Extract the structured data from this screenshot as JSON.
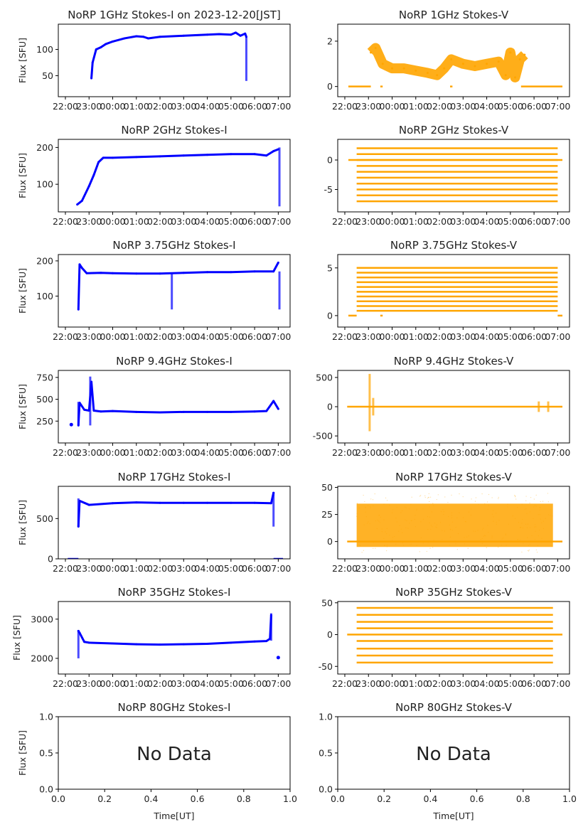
{
  "chart_data": [
    {
      "type": "scatter",
      "title": "NoRP 1GHz Stokes-I on 2023-12-20[JST]",
      "ylabel": "Flux [SFU]",
      "xlabel": "",
      "color": "#0000ff",
      "xticks": [
        "22:00",
        "23:00",
        "00:00",
        "01:00",
        "02:00",
        "03:00",
        "04:00",
        "05:00",
        "06:00",
        "07:00"
      ],
      "xlim": [
        -0.3,
        9.5
      ],
      "ylim": [
        10,
        148
      ],
      "yticks": [
        50,
        100
      ],
      "series": [
        {
          "name": "Stokes-I",
          "x": [
            1.1,
            1.15,
            1.3,
            1.5,
            1.7,
            2.0,
            2.5,
            3.0,
            3.3,
            3.5,
            4.0,
            4.5,
            5.0,
            5.5,
            6.0,
            6.5,
            7.0,
            7.2,
            7.4,
            7.6,
            7.65
          ],
          "y": [
            45,
            75,
            100,
            104,
            110,
            115,
            121,
            125,
            124,
            121,
            124,
            125,
            126,
            127,
            128,
            129,
            128,
            132,
            126,
            130,
            124
          ]
        }
      ],
      "spikes": [
        {
          "x": 7.65,
          "from": 40,
          "to": 124
        }
      ]
    },
    {
      "type": "scatter",
      "title": "NoRP 1GHz Stokes-V",
      "ylabel": "",
      "xlabel": "",
      "color": "#ffa500",
      "xticks": [
        "22:00",
        "23:00",
        "00:00",
        "01:00",
        "02:00",
        "03:00",
        "04:00",
        "05:00",
        "06:00",
        "07:00"
      ],
      "xlim": [
        -0.3,
        9.5
      ],
      "ylim": [
        -0.45,
        2.75
      ],
      "yticks": [
        0,
        2
      ],
      "series": [
        {
          "name": "Stokes-V",
          "x": [
            1.1,
            1.3,
            1.6,
            2.0,
            2.5,
            3.0,
            3.5,
            3.9,
            4.2,
            4.5,
            5.0,
            5.5,
            6.0,
            6.5,
            6.8,
            7.0,
            7.2,
            7.4,
            7.6
          ],
          "y": [
            1.5,
            1.7,
            1.0,
            0.8,
            0.8,
            0.7,
            0.6,
            0.5,
            0.8,
            1.2,
            1.0,
            0.9,
            1.0,
            1.1,
            0.5,
            1.5,
            0.4,
            1.2,
            1.4
          ]
        }
      ],
      "baseline": {
        "value": 0,
        "segments": [
          [
            0.15,
            1.1
          ],
          [
            1.5,
            1.6
          ],
          [
            4.45,
            4.55
          ],
          [
            7.45,
            9.2
          ]
        ]
      }
    },
    {
      "type": "scatter",
      "title": "NoRP 2GHz Stokes-I",
      "ylabel": "Flux [SFU]",
      "xlabel": "",
      "color": "#0000ff",
      "xticks": [
        "22:00",
        "23:00",
        "00:00",
        "01:00",
        "02:00",
        "03:00",
        "04:00",
        "05:00",
        "06:00",
        "07:00"
      ],
      "xlim": [
        -0.3,
        9.5
      ],
      "ylim": [
        25,
        222
      ],
      "yticks": [
        100,
        200
      ],
      "series": [
        {
          "name": "Stokes-I",
          "x": [
            0.5,
            0.7,
            1.0,
            1.2,
            1.4,
            1.6,
            2.0,
            3.0,
            4.0,
            5.0,
            6.0,
            7.0,
            8.0,
            8.5,
            8.8,
            9.0
          ],
          "y": [
            45,
            55,
            95,
            125,
            160,
            172,
            172,
            174,
            176,
            178,
            180,
            182,
            182,
            178,
            190,
            195
          ]
        }
      ],
      "spikes": [
        {
          "x": 9.05,
          "from": 40,
          "to": 200
        }
      ]
    },
    {
      "type": "scatter",
      "title": "NoRP 2GHz Stokes-V",
      "ylabel": "",
      "xlabel": "",
      "color": "#ffa500",
      "xticks": [
        "22:00",
        "23:00",
        "00:00",
        "01:00",
        "02:00",
        "03:00",
        "04:00",
        "05:00",
        "06:00",
        "07:00"
      ],
      "xlim": [
        -0.3,
        9.5
      ],
      "ylim": [
        -8.8,
        3.5
      ],
      "yticks": [
        -5,
        0
      ],
      "bands": {
        "x_from": 0.5,
        "x_to": 9.0,
        "levels": [
          2,
          1,
          0,
          -1,
          -2,
          -3,
          -4,
          -5,
          -6,
          -7
        ]
      },
      "baseline": {
        "value": 0,
        "segments": [
          [
            0.15,
            9.2
          ]
        ]
      }
    },
    {
      "type": "scatter",
      "title": "NoRP 3.75GHz Stokes-I",
      "ylabel": "Flux [SFU]",
      "xlabel": "",
      "color": "#0000ff",
      "xticks": [
        "22:00",
        "23:00",
        "00:00",
        "01:00",
        "02:00",
        "03:00",
        "04:00",
        "05:00",
        "06:00",
        "07:00"
      ],
      "xlim": [
        -0.3,
        9.5
      ],
      "ylim": [
        12,
        218
      ],
      "yticks": [
        100,
        200
      ],
      "series": [
        {
          "name": "Stokes-I",
          "x": [
            0.55,
            0.6,
            0.7,
            0.9,
            1.5,
            2.0,
            3.0,
            4.0,
            5.0,
            6.0,
            7.0,
            8.0,
            8.8,
            9.0
          ],
          "y": [
            62,
            190,
            180,
            165,
            166,
            165,
            164,
            164,
            166,
            168,
            168,
            170,
            170,
            195
          ]
        }
      ],
      "spikes": [
        {
          "x": 4.5,
          "from": 62,
          "to": 165
        },
        {
          "x": 9.05,
          "from": 62,
          "to": 170
        }
      ]
    },
    {
      "type": "scatter",
      "title": "NoRP 3.75GHz Stokes-V",
      "ylabel": "",
      "xlabel": "",
      "color": "#ffa500",
      "xticks": [
        "22:00",
        "23:00",
        "00:00",
        "01:00",
        "02:00",
        "03:00",
        "04:00",
        "05:00",
        "06:00",
        "07:00"
      ],
      "xlim": [
        -0.3,
        9.5
      ],
      "ylim": [
        -1.2,
        6.4
      ],
      "yticks": [
        0,
        5
      ],
      "bands": {
        "x_from": 0.5,
        "x_to": 9.0,
        "levels": [
          5,
          4.5,
          4,
          3.5,
          3,
          2.5,
          2,
          1.5,
          1,
          0.5
        ]
      },
      "baseline": {
        "value": 0,
        "segments": [
          [
            0.15,
            0.5
          ],
          [
            1.5,
            1.6
          ],
          [
            9.0,
            9.2
          ]
        ]
      }
    },
    {
      "type": "scatter",
      "title": "NoRP 9.4GHz Stokes-I",
      "ylabel": "Flux [SFU]",
      "xlabel": "",
      "color": "#0000ff",
      "xticks": [
        "22:00",
        "23:00",
        "00:00",
        "01:00",
        "02:00",
        "03:00",
        "04:00",
        "05:00",
        "06:00",
        "07:00"
      ],
      "xlim": [
        -0.3,
        9.5
      ],
      "ylim": [
        0,
        830
      ],
      "yticks": [
        250,
        500,
        750
      ],
      "series": [
        {
          "name": "Stokes-I",
          "x": [
            0.55,
            0.6,
            0.8,
            1.0,
            1.1,
            1.2,
            1.5,
            2.0,
            3.0,
            4.0,
            5.0,
            6.0,
            7.0,
            8.0,
            8.5,
            8.8,
            9.0
          ],
          "y": [
            200,
            460,
            380,
            370,
            700,
            370,
            360,
            365,
            355,
            350,
            355,
            355,
            355,
            360,
            365,
            480,
            390
          ]
        }
      ],
      "spikes": [
        {
          "x": 1.05,
          "from": 200,
          "to": 760
        },
        {
          "x": 0.55,
          "from": 200,
          "to": 470
        }
      ],
      "isolated": [
        {
          "x": 0.25,
          "y": 210
        }
      ]
    },
    {
      "type": "scatter",
      "title": "NoRP 9.4GHz Stokes-V",
      "ylabel": "",
      "xlabel": "",
      "color": "#ffa500",
      "xticks": [
        "22:00",
        "23:00",
        "00:00",
        "01:00",
        "02:00",
        "03:00",
        "04:00",
        "05:00",
        "06:00",
        "07:00"
      ],
      "xlim": [
        -0.3,
        9.5
      ],
      "ylim": [
        -620,
        620
      ],
      "yticks": [
        -500,
        0,
        500
      ],
      "spikes": [
        {
          "x": 1.05,
          "from": -420,
          "to": 560
        },
        {
          "x": 1.2,
          "from": -150,
          "to": 150
        },
        {
          "x": 8.2,
          "from": -90,
          "to": 90
        },
        {
          "x": 8.6,
          "from": -90,
          "to": 90
        }
      ],
      "baseline": {
        "value": 0,
        "segments": [
          [
            0.1,
            9.2
          ]
        ]
      }
    },
    {
      "type": "scatter",
      "title": "NoRP 17GHz Stokes-I",
      "ylabel": "Flux [SFU]",
      "xlabel": "",
      "color": "#0000ff",
      "xticks": [
        "22:00",
        "23:00",
        "00:00",
        "01:00",
        "02:00",
        "03:00",
        "04:00",
        "05:00",
        "06:00",
        "07:00"
      ],
      "xlim": [
        -0.3,
        9.5
      ],
      "ylim": [
        0,
        900
      ],
      "yticks": [
        0,
        500
      ],
      "series": [
        {
          "name": "Stokes-I",
          "x": [
            0.55,
            0.6,
            1.0,
            2.0,
            3.0,
            4.0,
            5.0,
            6.0,
            7.0,
            8.0,
            8.7,
            8.8
          ],
          "y": [
            400,
            720,
            670,
            690,
            700,
            695,
            695,
            695,
            695,
            695,
            690,
            820
          ]
        }
      ],
      "spikes": [
        {
          "x": 0.55,
          "from": 400,
          "to": 750
        },
        {
          "x": 8.8,
          "from": 400,
          "to": 830
        }
      ],
      "baseline": {
        "value": 0,
        "segments": [
          [
            0.1,
            0.55
          ],
          [
            8.8,
            9.2
          ]
        ]
      }
    },
    {
      "type": "scatter",
      "title": "NoRP 17GHz Stokes-V",
      "ylabel": "",
      "xlabel": "",
      "color": "#ffa500",
      "xticks": [
        "22:00",
        "23:00",
        "00:00",
        "01:00",
        "02:00",
        "03:00",
        "04:00",
        "05:00",
        "06:00",
        "07:00"
      ],
      "xlim": [
        -0.3,
        9.5
      ],
      "ylim": [
        -16,
        51
      ],
      "yticks": [
        0,
        25,
        50
      ],
      "noise_band": {
        "x_from": 0.5,
        "x_to": 8.8,
        "low": -5,
        "high": 35
      },
      "baseline": {
        "value": 0,
        "segments": [
          [
            0.1,
            9.2
          ]
        ]
      }
    },
    {
      "type": "scatter",
      "title": "NoRP 35GHz Stokes-I",
      "ylabel": "Flux [SFU]",
      "xlabel": "",
      "color": "#0000ff",
      "xticks": [
        "22:00",
        "23:00",
        "00:00",
        "01:00",
        "02:00",
        "03:00",
        "04:00",
        "05:00",
        "06:00",
        "07:00"
      ],
      "xlim": [
        -0.3,
        9.5
      ],
      "ylim": [
        1600,
        3450
      ],
      "yticks": [
        2000,
        3000
      ],
      "series": [
        {
          "name": "Stokes-I",
          "x": [
            0.55,
            0.6,
            0.8,
            1.0,
            2.0,
            3.0,
            4.0,
            5.0,
            6.0,
            7.0,
            8.0,
            8.5,
            8.65,
            8.7
          ],
          "y": [
            2700,
            2650,
            2420,
            2400,
            2380,
            2360,
            2350,
            2360,
            2370,
            2400,
            2430,
            2440,
            2500,
            3100
          ]
        }
      ],
      "spikes": [
        {
          "x": 0.55,
          "from": 2000,
          "to": 2720
        },
        {
          "x": 8.7,
          "from": 2450,
          "to": 3150
        }
      ],
      "isolated": [
        {
          "x": 9.0,
          "y": 2020
        }
      ]
    },
    {
      "type": "scatter",
      "title": "NoRP 35GHz Stokes-V",
      "ylabel": "",
      "xlabel": "",
      "color": "#ffa500",
      "xticks": [
        "22:00",
        "23:00",
        "00:00",
        "01:00",
        "02:00",
        "03:00",
        "04:00",
        "05:00",
        "06:00",
        "07:00"
      ],
      "xlim": [
        -0.3,
        9.5
      ],
      "ylim": [
        -62,
        52
      ],
      "yticks": [
        -50,
        0,
        50
      ],
      "bands": {
        "x_from": 0.5,
        "x_to": 8.8,
        "levels": [
          42,
          31,
          20,
          10,
          -10,
          -22,
          -33,
          -44
        ]
      },
      "baseline": {
        "value": 0,
        "segments": [
          [
            0.1,
            9.2
          ]
        ]
      }
    },
    {
      "type": "scatter",
      "title": "NoRP 80GHz Stokes-I",
      "ylabel": "Flux [SFU]",
      "xlabel": "Time[UT]",
      "color": "#0000ff",
      "xticks": [
        "0.0",
        "0.2",
        "0.4",
        "0.6",
        "0.8",
        "1.0"
      ],
      "xlim": [
        0,
        1
      ],
      "ylim": [
        0,
        1
      ],
      "yticks": [
        "0.0",
        "0.5",
        "1.0"
      ],
      "numeric_axes": true,
      "annotation": "No Data"
    },
    {
      "type": "scatter",
      "title": "NoRP 80GHz Stokes-V",
      "ylabel": "",
      "xlabel": "Time[UT]",
      "color": "#ffa500",
      "xticks": [
        "0.0",
        "0.2",
        "0.4",
        "0.6",
        "0.8",
        "1.0"
      ],
      "xlim": [
        0,
        1
      ],
      "ylim": [
        0,
        1
      ],
      "yticks": [
        "0.0",
        "0.5",
        "1.0"
      ],
      "numeric_axes": true,
      "annotation": "No Data"
    }
  ]
}
